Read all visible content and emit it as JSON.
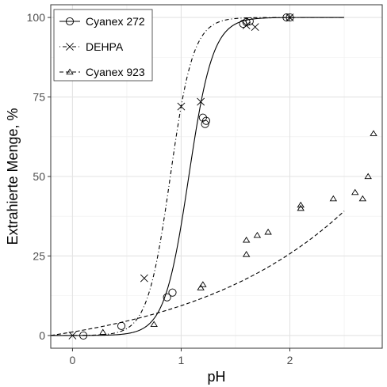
{
  "chart_data": {
    "type": "scatter",
    "xlabel": "pH",
    "ylabel": "Extrahierte Menge, %",
    "xlim": [
      -0.2,
      2.85
    ],
    "ylim": [
      -4,
      104
    ],
    "x_ticks": [
      0,
      1,
      2
    ],
    "x_tick_labels": [
      "0",
      "1",
      "2"
    ],
    "y_ticks": [
      0,
      25,
      50,
      75,
      100
    ],
    "y_tick_labels": [
      "0",
      "25",
      "50",
      "75",
      "100"
    ],
    "grid": true,
    "legend_position": "top-left",
    "series": [
      {
        "name": "Cyanex 272",
        "marker": "circle",
        "line_style": "solid",
        "points": [
          [
            0.1,
            0
          ],
          [
            0.45,
            3
          ],
          [
            0.87,
            12
          ],
          [
            0.92,
            13.5
          ],
          [
            1.2,
            68.5
          ],
          [
            1.23,
            67.5
          ],
          [
            1.22,
            66.5
          ],
          [
            1.57,
            98
          ],
          [
            1.6,
            98.5
          ],
          [
            1.63,
            98.8
          ],
          [
            1.97,
            100
          ],
          [
            2.0,
            100
          ]
        ],
        "fit": {
          "model": "logistic",
          "x0": 1.07,
          "k": 9,
          "lower": 0,
          "upper": 100,
          "x_range": [
            -0.2,
            2.5
          ]
        }
      },
      {
        "name": "DEHPA",
        "marker": "cross",
        "line_style": "dotdash",
        "points": [
          [
            0.0,
            0
          ],
          [
            0.66,
            18
          ],
          [
            1.0,
            72
          ],
          [
            1.18,
            73.5
          ],
          [
            1.6,
            97.5
          ],
          [
            1.68,
            97
          ],
          [
            2.0,
            100
          ]
        ],
        "fit": {
          "model": "logistic",
          "x0": 0.9,
          "k": 9.5,
          "lower": 0,
          "upper": 100,
          "x_range": [
            -0.2,
            2.5
          ]
        }
      },
      {
        "name": "Cyanex 923",
        "marker": "triangle",
        "line_style": "dashed",
        "points": [
          [
            0.28,
            1
          ],
          [
            0.75,
            3.5
          ],
          [
            1.18,
            15
          ],
          [
            1.2,
            16
          ],
          [
            1.6,
            30
          ],
          [
            1.6,
            25.5
          ],
          [
            1.7,
            31.5
          ],
          [
            1.8,
            32.5
          ],
          [
            2.1,
            41
          ],
          [
            2.1,
            40
          ],
          [
            2.4,
            43
          ],
          [
            2.6,
            45
          ],
          [
            2.67,
            43
          ],
          [
            2.72,
            50
          ],
          [
            2.77,
            63.5
          ]
        ],
        "fit": {
          "model": "exponential",
          "a": 8.5,
          "b": 0.68,
          "c": -7.4,
          "x_range": [
            -0.2,
            2.5
          ]
        }
      }
    ]
  }
}
